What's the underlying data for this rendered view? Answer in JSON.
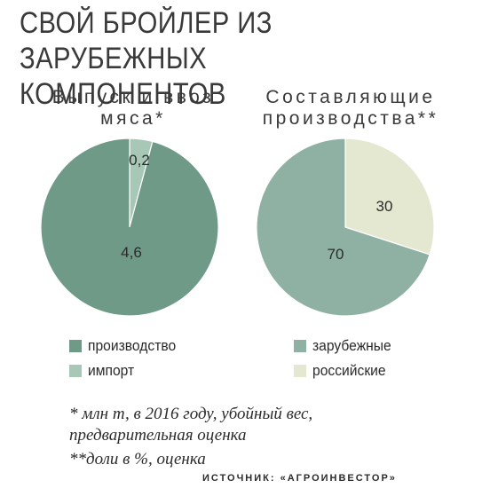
{
  "title_line1": "СВОЙ БРОЙЛЕР ИЗ ЗАРУБЕЖНЫХ",
  "title_line2": "КОМПОНЕНТОВ",
  "colors": {
    "dark_green": "#6e9a87",
    "light_green": "#a7c8b6",
    "gray_green": "#8fb1a3",
    "cream": "#e4e8d0"
  },
  "chart_data": [
    {
      "type": "pie",
      "title_line1": "Выпуск и ввоз",
      "title_line2": "мяса*",
      "slices": [
        {
          "name": "производство",
          "label": "4,6",
          "value": 4.6,
          "color": "#6e9a87"
        },
        {
          "name": "импорт",
          "label": "0,2",
          "value": 0.2,
          "color": "#a7c8b6"
        }
      ]
    },
    {
      "type": "pie",
      "title_line1": "Составляющие",
      "title_line2": "производства**",
      "slices": [
        {
          "name": "зарубежные",
          "label": "70",
          "value": 70,
          "color": "#8fb1a3"
        },
        {
          "name": "российские",
          "label": "30",
          "value": 30,
          "color": "#e4e8d0"
        }
      ]
    }
  ],
  "notes": {
    "note1_line1": "* млн т, в 2016 году, убойный вес,",
    "note1_line2": "предварительная оценка",
    "note2": "**доли в %, оценка"
  },
  "source": "ИСТОЧНИК: «АГРОИНВЕСТОР»"
}
